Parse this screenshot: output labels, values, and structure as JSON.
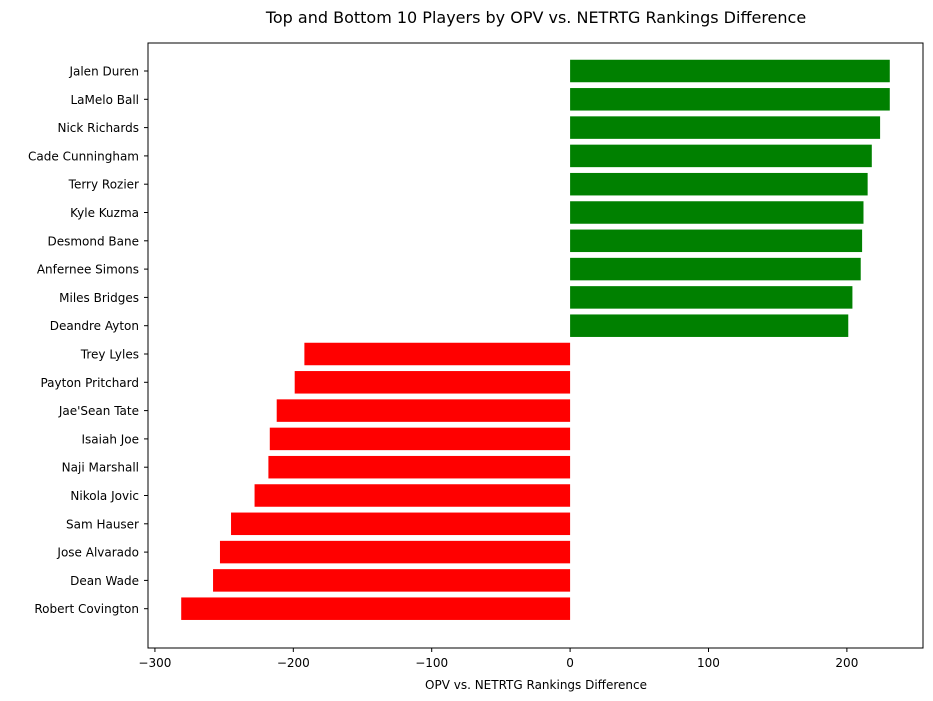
{
  "chart_data": {
    "type": "bar",
    "orientation": "horizontal",
    "title": "Top and Bottom 10 Players by OPV vs. NETRTG Rankings Difference",
    "xlabel": "OPV vs. NETRTG Rankings Difference",
    "ylabel": "",
    "xlim": [
      -305,
      255
    ],
    "xticks": [
      -300,
      -200,
      -100,
      0,
      100,
      200
    ],
    "xtick_labels": [
      "−300",
      "−200",
      "−100",
      "0",
      "100",
      "200"
    ],
    "grid": false,
    "legend": "none",
    "colors": {
      "positive": "#008000",
      "negative": "#ff0000"
    },
    "categories": [
      "Jalen Duren",
      "LaMelo Ball",
      "Nick Richards",
      "Cade Cunningham",
      "Terry Rozier",
      "Kyle Kuzma",
      "Desmond Bane",
      "Anfernee Simons",
      "Miles Bridges",
      "Deandre Ayton",
      "Trey Lyles",
      "Payton Pritchard",
      "Jae'Sean Tate",
      "Isaiah Joe",
      "Naji Marshall",
      "Nikola Jovic",
      "Sam Hauser",
      "Jose Alvarado",
      "Dean Wade",
      "Robert Covington"
    ],
    "values": [
      231,
      231,
      224,
      218,
      215,
      212,
      211,
      210,
      204,
      201,
      -192,
      -199,
      -212,
      -217,
      -218,
      -228,
      -245,
      -253,
      -258,
      -281
    ]
  }
}
